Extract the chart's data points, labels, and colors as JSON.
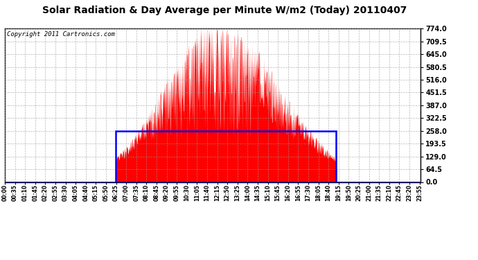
{
  "title": "Solar Radiation & Day Average per Minute W/m2 (Today) 20110407",
  "copyright": "Copyright 2011 Cartronics.com",
  "yticks": [
    0.0,
    64.5,
    129.0,
    193.5,
    258.0,
    322.5,
    387.0,
    451.5,
    516.0,
    580.5,
    645.0,
    709.5,
    774.0
  ],
  "ymax": 774.0,
  "ymin": 0.0,
  "total_minutes": 1440,
  "sunrise_minute": 383,
  "sunset_minute": 1147,
  "peak_minute": 735,
  "peak_value": 774.0,
  "day_avg": 258.0,
  "bar_color": "#FF0000",
  "avg_line_color": "#0000FF",
  "background_color": "#FFFFFF",
  "grid_color": "#999999",
  "title_fontsize": 10,
  "copyright_fontsize": 6.5
}
